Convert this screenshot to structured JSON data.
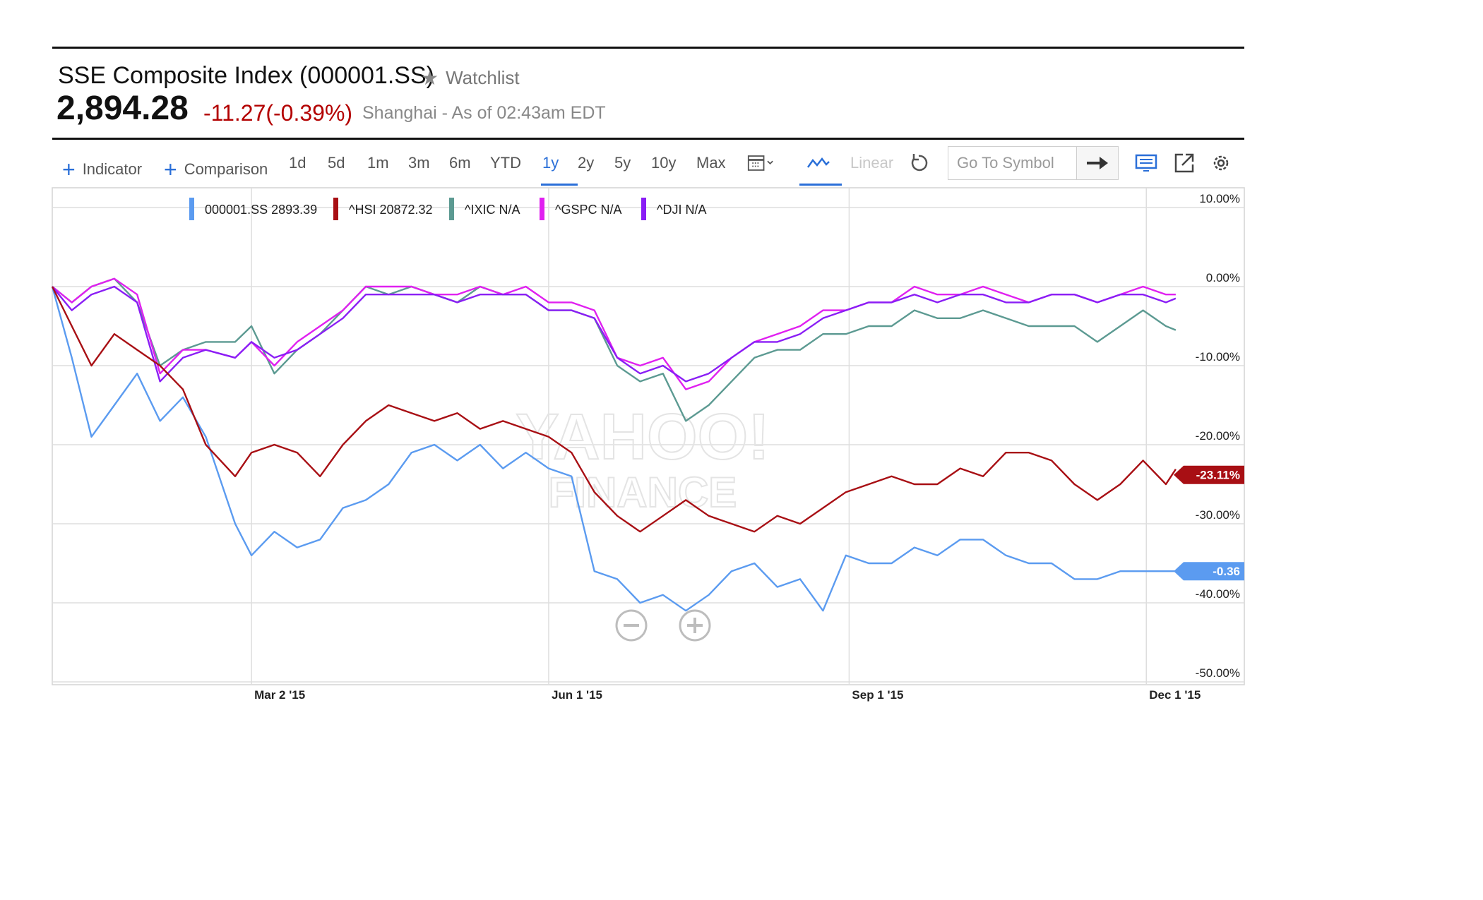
{
  "header": {
    "title": "SSE Composite Index (000001.SS)",
    "watchlist_label": "Watchlist",
    "price": "2,894.28",
    "change": "-11.27",
    "change_pct": "(-0.39%)",
    "market_info": "Shanghai - As of 02:43am EDT"
  },
  "toolbar": {
    "indicator_label": "Indicator",
    "comparison_label": "Comparison",
    "ranges": [
      "1d",
      "5d",
      "1m",
      "3m",
      "6m",
      "YTD",
      "1y",
      "2y",
      "5y",
      "10y",
      "Max"
    ],
    "active_range": "1y",
    "scale_label": "Linear",
    "symbol_placeholder": "Go To Symbol"
  },
  "colors": {
    "sse": "#5b9bf0",
    "hsi": "#a80f14",
    "ixic": "#5c9a92",
    "gspc": "#e020f0",
    "dji": "#8a1ef5",
    "accent": "#2a6fd8"
  },
  "chart_data": {
    "type": "line",
    "y_unit": "%",
    "ylim": [
      -50,
      10
    ],
    "y_ticks": [
      "10.00%",
      "0.00%",
      "-10.00%",
      "-20.00%",
      "-30.00%",
      "-40.00%",
      "-50.00%"
    ],
    "x_ticks": [
      "Mar 2 '15",
      "Jun 1 '15",
      "Sep 1 '15",
      "Dec 1 '15"
    ],
    "grid": true,
    "legend_position": "top-left",
    "watermark": [
      "YAHOO!",
      "FINANCE"
    ],
    "zoom_controls": [
      "zoom-out",
      "zoom-in"
    ],
    "series": [
      {
        "name": "000001.SS",
        "legend": "000001.SS 2893.39",
        "color_key": "sse",
        "end_label": "-0.36",
        "x": [
          "2014-12-31",
          "2015-01-06",
          "2015-01-12",
          "2015-01-19",
          "2015-01-26",
          "2015-02-02",
          "2015-02-09",
          "2015-02-16",
          "2015-02-25",
          "2015-03-02",
          "2015-03-09",
          "2015-03-16",
          "2015-03-23",
          "2015-03-30",
          "2015-04-06",
          "2015-04-13",
          "2015-04-20",
          "2015-04-27",
          "2015-05-04",
          "2015-05-11",
          "2015-05-18",
          "2015-05-25",
          "2015-06-01",
          "2015-06-08",
          "2015-06-15",
          "2015-06-22",
          "2015-06-29",
          "2015-07-06",
          "2015-07-13",
          "2015-07-20",
          "2015-07-27",
          "2015-08-03",
          "2015-08-10",
          "2015-08-17",
          "2015-08-24",
          "2015-08-31",
          "2015-09-07",
          "2015-09-14",
          "2015-09-21",
          "2015-09-28",
          "2015-10-05",
          "2015-10-12",
          "2015-10-19",
          "2015-10-26",
          "2015-11-02",
          "2015-11-09",
          "2015-11-16",
          "2015-11-23",
          "2015-11-30",
          "2015-12-07",
          "2015-12-10"
        ],
        "values": [
          0,
          -9,
          -19,
          -15,
          -11,
          -17,
          -14,
          -19,
          -30,
          -34,
          -31,
          -33,
          -32,
          -28,
          -27,
          -25,
          -21,
          -20,
          -22,
          -20,
          -23,
          -21,
          -23,
          -24,
          -36,
          -37,
          -40,
          -39,
          -41,
          -39,
          -36,
          -35,
          -38,
          -37,
          -41,
          -34,
          -35,
          -35,
          -33,
          -34,
          -32,
          -32,
          -34,
          -35,
          -35,
          -37,
          -37,
          -36,
          -36,
          -36,
          -36
        ]
      },
      {
        "name": "^HSI",
        "legend": "^HSI 20872.32",
        "color_key": "hsi",
        "end_label": "-23.11%",
        "x": [
          "2014-12-31",
          "2015-01-06",
          "2015-01-12",
          "2015-01-19",
          "2015-01-26",
          "2015-02-02",
          "2015-02-09",
          "2015-02-16",
          "2015-02-25",
          "2015-03-02",
          "2015-03-09",
          "2015-03-16",
          "2015-03-23",
          "2015-03-30",
          "2015-04-06",
          "2015-04-13",
          "2015-04-20",
          "2015-04-27",
          "2015-05-04",
          "2015-05-11",
          "2015-05-18",
          "2015-05-25",
          "2015-06-01",
          "2015-06-08",
          "2015-06-15",
          "2015-06-22",
          "2015-06-29",
          "2015-07-06",
          "2015-07-13",
          "2015-07-20",
          "2015-07-27",
          "2015-08-03",
          "2015-08-10",
          "2015-08-17",
          "2015-08-24",
          "2015-08-31",
          "2015-09-07",
          "2015-09-14",
          "2015-09-21",
          "2015-09-28",
          "2015-10-05",
          "2015-10-12",
          "2015-10-19",
          "2015-10-26",
          "2015-11-02",
          "2015-11-09",
          "2015-11-16",
          "2015-11-23",
          "2015-11-30",
          "2015-12-07",
          "2015-12-10"
        ],
        "values": [
          0,
          -5,
          -10,
          -6,
          -8,
          -10,
          -13,
          -20,
          -24,
          -21,
          -20,
          -21,
          -24,
          -20,
          -17,
          -15,
          -16,
          -17,
          -16,
          -18,
          -17,
          -18,
          -19,
          -21,
          -26,
          -29,
          -31,
          -29,
          -27,
          -29,
          -30,
          -31,
          -29,
          -30,
          -28,
          -26,
          -25,
          -24,
          -25,
          -25,
          -23,
          -24,
          -21,
          -21,
          -22,
          -25,
          -27,
          -25,
          -22,
          -25,
          -23.1
        ]
      },
      {
        "name": "^IXIC",
        "legend": "^IXIC N/A",
        "color_key": "ixic",
        "end_label": "",
        "x": [
          "2014-12-31",
          "2015-01-06",
          "2015-01-12",
          "2015-01-19",
          "2015-01-26",
          "2015-02-02",
          "2015-02-09",
          "2015-02-16",
          "2015-02-25",
          "2015-03-02",
          "2015-03-09",
          "2015-03-16",
          "2015-03-23",
          "2015-03-30",
          "2015-04-06",
          "2015-04-13",
          "2015-04-20",
          "2015-04-27",
          "2015-05-04",
          "2015-05-11",
          "2015-05-18",
          "2015-05-25",
          "2015-06-01",
          "2015-06-08",
          "2015-06-15",
          "2015-06-22",
          "2015-06-29",
          "2015-07-06",
          "2015-07-13",
          "2015-07-20",
          "2015-07-27",
          "2015-08-03",
          "2015-08-10",
          "2015-08-17",
          "2015-08-24",
          "2015-08-31",
          "2015-09-07",
          "2015-09-14",
          "2015-09-21",
          "2015-09-28",
          "2015-10-05",
          "2015-10-12",
          "2015-10-19",
          "2015-10-26",
          "2015-11-02",
          "2015-11-09",
          "2015-11-16",
          "2015-11-23",
          "2015-11-30",
          "2015-12-07",
          "2015-12-10"
        ],
        "values": [
          0,
          -2,
          0,
          1,
          -2,
          -10,
          -8,
          -7,
          -7,
          -5,
          -11,
          -8,
          -6,
          -3,
          0,
          -1,
          0,
          -1,
          -2,
          0,
          -1,
          -1,
          -3,
          -3,
          -4,
          -10,
          -12,
          -11,
          -17,
          -15,
          -12,
          -9,
          -8,
          -8,
          -6,
          -6,
          -5,
          -5,
          -3,
          -4,
          -4,
          -3,
          -4,
          -5,
          -5,
          -5,
          -7,
          -5,
          -3,
          -5,
          -5.5
        ]
      },
      {
        "name": "^GSPC",
        "legend": "^GSPC N/A",
        "color_key": "gspc",
        "end_label": "",
        "x": [
          "2014-12-31",
          "2015-01-06",
          "2015-01-12",
          "2015-01-19",
          "2015-01-26",
          "2015-02-02",
          "2015-02-09",
          "2015-02-16",
          "2015-02-25",
          "2015-03-02",
          "2015-03-09",
          "2015-03-16",
          "2015-03-23",
          "2015-03-30",
          "2015-04-06",
          "2015-04-13",
          "2015-04-20",
          "2015-04-27",
          "2015-05-04",
          "2015-05-11",
          "2015-05-18",
          "2015-05-25",
          "2015-06-01",
          "2015-06-08",
          "2015-06-15",
          "2015-06-22",
          "2015-06-29",
          "2015-07-06",
          "2015-07-13",
          "2015-07-20",
          "2015-07-27",
          "2015-08-03",
          "2015-08-10",
          "2015-08-17",
          "2015-08-24",
          "2015-08-31",
          "2015-09-07",
          "2015-09-14",
          "2015-09-21",
          "2015-09-28",
          "2015-10-05",
          "2015-10-12",
          "2015-10-19",
          "2015-10-26",
          "2015-11-02",
          "2015-11-09",
          "2015-11-16",
          "2015-11-23",
          "2015-11-30",
          "2015-12-07",
          "2015-12-10"
        ],
        "values": [
          0,
          -2,
          0,
          1,
          -1,
          -11,
          -8,
          -8,
          -9,
          -7,
          -10,
          -7,
          -5,
          -3,
          0,
          0,
          0,
          -1,
          -1,
          0,
          -1,
          0,
          -2,
          -2,
          -3,
          -9,
          -10,
          -9,
          -13,
          -12,
          -9,
          -7,
          -6,
          -5,
          -3,
          -3,
          -2,
          -2,
          0,
          -1,
          -1,
          0,
          -1,
          -2,
          -1,
          -1,
          -2,
          -1,
          0,
          -1,
          -1
        ]
      },
      {
        "name": "^DJI",
        "legend": "^DJI N/A",
        "color_key": "dji",
        "end_label": "",
        "x": [
          "2014-12-31",
          "2015-01-06",
          "2015-01-12",
          "2015-01-19",
          "2015-01-26",
          "2015-02-02",
          "2015-02-09",
          "2015-02-16",
          "2015-02-25",
          "2015-03-02",
          "2015-03-09",
          "2015-03-16",
          "2015-03-23",
          "2015-03-30",
          "2015-04-06",
          "2015-04-13",
          "2015-04-20",
          "2015-04-27",
          "2015-05-04",
          "2015-05-11",
          "2015-05-18",
          "2015-05-25",
          "2015-06-01",
          "2015-06-08",
          "2015-06-15",
          "2015-06-22",
          "2015-06-29",
          "2015-07-06",
          "2015-07-13",
          "2015-07-20",
          "2015-07-27",
          "2015-08-03",
          "2015-08-10",
          "2015-08-17",
          "2015-08-24",
          "2015-08-31",
          "2015-09-07",
          "2015-09-14",
          "2015-09-21",
          "2015-09-28",
          "2015-10-05",
          "2015-10-12",
          "2015-10-19",
          "2015-10-26",
          "2015-11-02",
          "2015-11-09",
          "2015-11-16",
          "2015-11-23",
          "2015-11-30",
          "2015-12-07",
          "2015-12-10"
        ],
        "values": [
          0,
          -3,
          -1,
          0,
          -2,
          -12,
          -9,
          -8,
          -9,
          -7,
          -9,
          -8,
          -6,
          -4,
          -1,
          -1,
          -1,
          -1,
          -2,
          -1,
          -1,
          -1,
          -3,
          -3,
          -4,
          -9,
          -11,
          -10,
          -12,
          -11,
          -9,
          -7,
          -7,
          -6,
          -4,
          -3,
          -2,
          -2,
          -1,
          -2,
          -1,
          -1,
          -2,
          -2,
          -1,
          -1,
          -2,
          -1,
          -1,
          -2,
          -1.5
        ]
      }
    ]
  }
}
